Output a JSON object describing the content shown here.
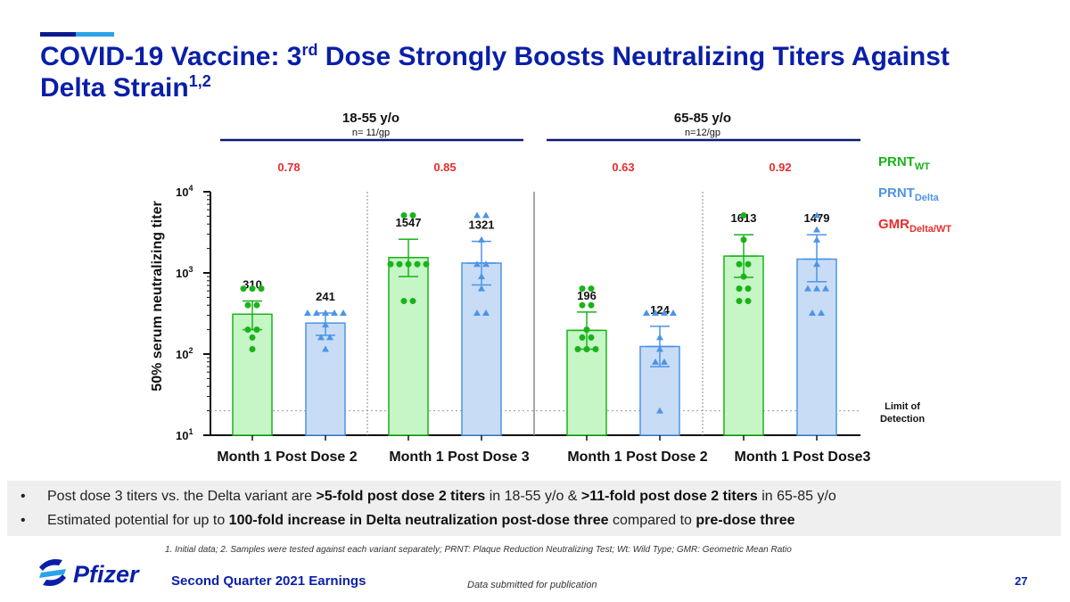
{
  "slide": {
    "title_part1": "COVID-19 Vaccine: 3",
    "title_sup1": "rd",
    "title_part2": " Dose Strongly Boosts Neutralizing Titers Against Delta Strain",
    "title_sup2": "1,2",
    "colors": {
      "title": "#0a1fa8",
      "wt": "#19b319",
      "delta": "#4d94e6",
      "gmr": "#e62e2e"
    }
  },
  "bullets": [
    [
      "Post dose 3 titers vs. the Delta variant are ",
      ">5-fold post dose 2 titers",
      " in 18-55 y/o &  ",
      ">11-fold post dose 2 titers",
      " in 65-85 y/o"
    ],
    [
      "Estimated potential for up to ",
      "100-fold increase in Delta neutralization post-dose three",
      " compared to ",
      "pre-dose three",
      ""
    ]
  ],
  "footnote": "1. Initial data; 2. Samples were tested against each variant separately; PRNT: Plaque Reduction Neutralizing Test; Wt: Wild Type; GMR: Geometric Mean Ratio",
  "footer": {
    "logo_text": "Pfizer",
    "earnings": "Second Quarter 2021 Earnings",
    "submitted": "Data submitted for publication",
    "page_number": "27"
  },
  "chart_data": {
    "type": "bar",
    "ylabel": "50% serum neutralizing titer",
    "yscale": "log",
    "ylim": [
      10,
      10000
    ],
    "yticks": [
      {
        "value": 10,
        "base": "10",
        "exp": "1"
      },
      {
        "value": 100,
        "base": "10",
        "exp": "2"
      },
      {
        "value": 1000,
        "base": "10",
        "exp": "3"
      },
      {
        "value": 10000,
        "base": "10",
        "exp": "4"
      }
    ],
    "limit_of_detection": {
      "value": 20,
      "label_lines": [
        "Limit of",
        "Detection"
      ]
    },
    "legend": [
      {
        "name": "PRNT",
        "sub": "WT",
        "color": "#19b319"
      },
      {
        "name": "PRNT",
        "sub": "Delta",
        "color": "#4d94e6"
      },
      {
        "name": "GMR",
        "sub": "Delta/WT",
        "color": "#e62e2e"
      }
    ],
    "age_groups": [
      {
        "label": "18-55 y/o",
        "n": "n= 11/gp"
      },
      {
        "label": "65-85 y/o",
        "n": "n=12/gp"
      }
    ],
    "categories": [
      "Month 1 Post Dose 2",
      "Month 1 Post Dose 3",
      "Month 1 Post Dose 2",
      "Month 1 Post  Dose3"
    ],
    "gmr": [
      "0.78",
      "0.85",
      "0.63",
      "0.92"
    ],
    "series": [
      {
        "name": "PRNT WT",
        "values": [
          310,
          1547,
          196,
          1613
        ],
        "error_low": [
          200,
          900,
          115,
          880
        ],
        "error_high": [
          450,
          2600,
          330,
          2950
        ],
        "points": [
          [
            640,
            640,
            640,
            400,
            400,
            200,
            200,
            160,
            115
          ],
          [
            5120,
            5120,
            1280,
            1280,
            1280,
            1280,
            1280,
            450,
            450
          ],
          [
            640,
            640,
            400,
            400,
            200,
            160,
            160,
            115,
            115,
            115
          ],
          [
            5120,
            2560,
            1280,
            1280,
            900,
            640,
            640,
            450,
            450
          ]
        ]
      },
      {
        "name": "PRNT Delta",
        "values": [
          241,
          1321,
          124,
          1479
        ],
        "error_low": [
          170,
          710,
          70,
          780
        ],
        "error_high": [
          320,
          2450,
          220,
          2950
        ],
        "points": [
          [
            320,
            320,
            320,
            320,
            320,
            230,
            160,
            160,
            115
          ],
          [
            5120,
            5120,
            2560,
            1280,
            1280,
            900,
            640,
            320,
            320
          ],
          [
            320,
            320,
            320,
            320,
            160,
            115,
            80,
            80,
            20
          ],
          [
            5120,
            3400,
            2560,
            1280,
            640,
            640,
            640,
            320,
            320
          ]
        ]
      }
    ]
  }
}
